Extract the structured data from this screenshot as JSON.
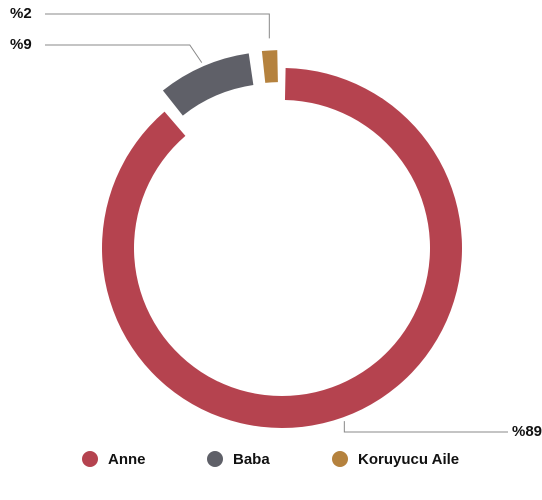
{
  "chart_data": {
    "type": "donut",
    "categories": [
      "Anne",
      "Baba",
      "Koruyucu Aile"
    ],
    "values": [
      89,
      9,
      2
    ],
    "value_labels": [
      "%89",
      "%9",
      "%2"
    ],
    "colors": [
      "#b5434f",
      "#5f6068",
      "#b5823e"
    ],
    "legend": "bottom"
  }
}
